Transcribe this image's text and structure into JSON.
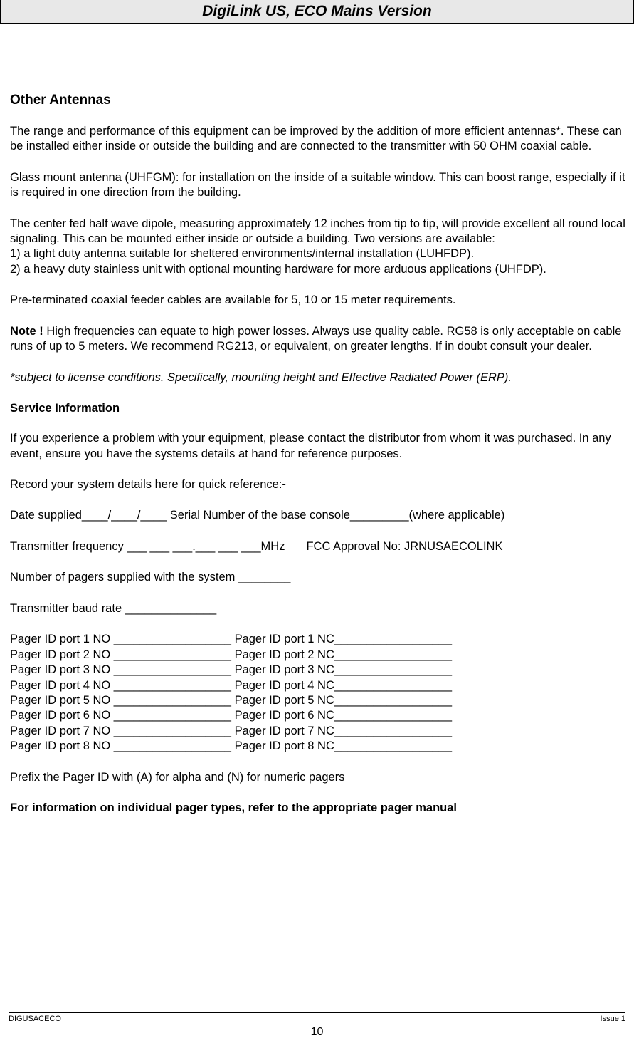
{
  "header": {
    "title": "DigiLink  US, ECO  Mains Version"
  },
  "body": {
    "h1": "Other Antennas",
    "p1": "The range and performance of this equipment can be improved by the addition of more efficient antennas*. These can be installed either inside or outside the building and are connected to the transmitter with 50 OHM coaxial cable.",
    "p2": "Glass mount antenna (UHFGM): for installation on the inside of a suitable window. This can boost range, especially if it is required in one direction from the building.",
    "p3a": "The center fed half wave dipole, measuring approximately 12 inches from tip to tip, will provide excellent all round local signaling. This can be mounted either inside or outside a building. Two versions are available:",
    "p3b": "1) a light duty antenna suitable for sheltered environments/internal installation (LUHFDP).",
    "p3c": "2)  a heavy duty stainless unit with optional mounting hardware for more arduous applications (UHFDP).",
    "p4": "Pre-terminated coaxial feeder cables are available for 5, 10 or 15 meter requirements.",
    "noteLabel": "Note ! ",
    "p5": "High frequencies can equate to high power losses. Always use quality cable. RG58 is only acceptable on cable runs of up to 5 meters. We recommend RG213, or equivalent, on greater lengths. If in doubt consult your dealer.",
    "p6": "*subject to license conditions. Specifically, mounting height and Effective Radiated Power (ERP).",
    "h2": "Service Information",
    "p7": "If you experience a problem with your equipment, please contact the distributor from whom it was purchased. In any event, ensure you have the systems details at hand for reference purposes.",
    "p8": "Record your system details here for quick reference:-",
    "p9": "Date supplied____/____/____  Serial Number of the base console_________(where applicable)",
    "p10a": "Transmitter frequency   ___ ___ ___.___ ___ ___MHz",
    "p10b": "FCC Approval No: JRNUSAECOLINK",
    "p11": "Number of pagers supplied with the system ________",
    "p12": "Transmitter baud rate ______________",
    "pagerPorts": [
      "Pager ID port 1 NO __________________ Pager ID port 1 NC__________________",
      "Pager ID port 2 NO __________________ Pager ID port 2 NC__________________",
      "Pager ID port 3 NO __________________ Pager ID port 3 NC__________________",
      "Pager ID port 4 NO __________________ Pager ID port 4 NC__________________",
      "Pager ID port 5 NO __________________ Pager ID port 5 NC__________________",
      "Pager ID port 6 NO __________________ Pager ID port 6 NC__________________",
      "Pager ID port 7 NO __________________ Pager ID port 7 NC__________________",
      "Pager ID port 8 NO __________________ Pager ID port 8 NC__________________"
    ],
    "p13": "Prefix the Pager ID with (A) for alpha and (N) for numeric pagers",
    "p14": "For information on individual pager types, refer to the appropriate pager manual"
  },
  "footer": {
    "left": "DIGUSACECO",
    "right": "Issue 1",
    "page": "10"
  },
  "colors": {
    "headerBg": "#e8e8e8",
    "text": "#000000",
    "background": "#ffffff"
  },
  "typography": {
    "bodyFont": "Arial",
    "bodySize": 16.5,
    "headerSize": 21,
    "sectionTitleSize": 19,
    "footerSize": 11
  }
}
